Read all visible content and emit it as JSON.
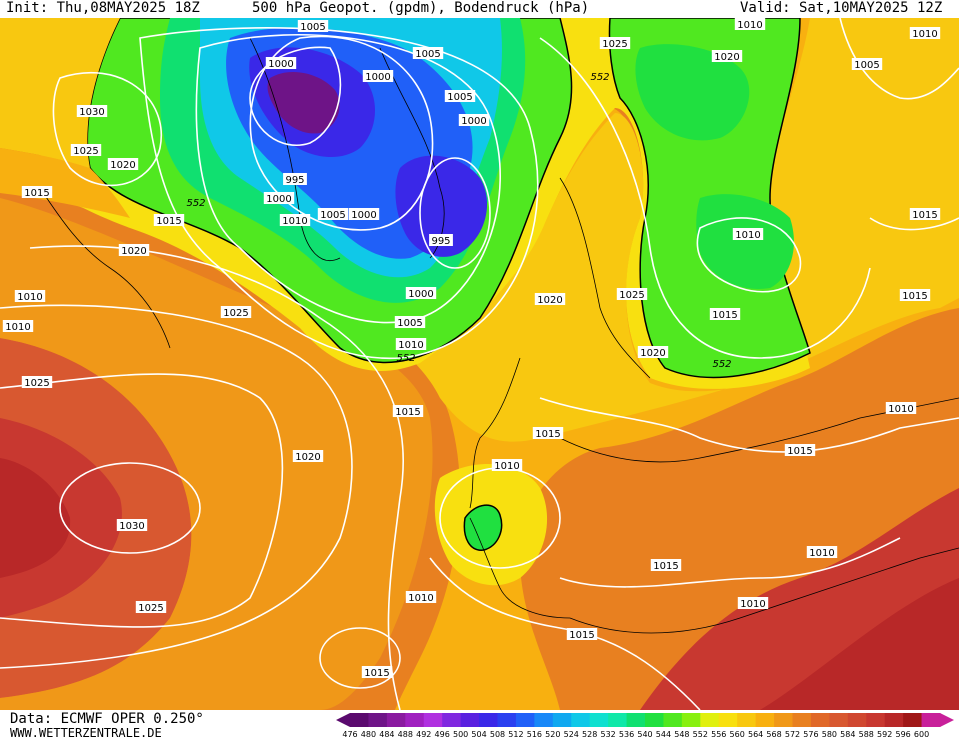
{
  "header": {
    "init": "Init: Thu,08MAY2025 18Z",
    "title": "500 hPa Geopot. (gpdm), Bodendruck (hPa)",
    "valid": "Valid: Sat,10MAY2025 12Z"
  },
  "footer": {
    "data_source": "Data: ECMWF OPER 0.250°",
    "website": "WWW.WETTERZENTRALE.DE"
  },
  "legend": {
    "values": [
      "476",
      "480",
      "484",
      "488",
      "492",
      "496",
      "500",
      "504",
      "508",
      "512",
      "516",
      "520",
      "524",
      "528",
      "532",
      "536",
      "540",
      "544",
      "548",
      "552",
      "556",
      "560",
      "564",
      "568",
      "572",
      "576",
      "580",
      "584",
      "588",
      "592",
      "596",
      "600"
    ],
    "colors": [
      "#5a0a6e",
      "#6e1487",
      "#8a1aa0",
      "#a020c0",
      "#b030e0",
      "#8028e0",
      "#5a20e0",
      "#3a28e8",
      "#2a40f0",
      "#2060f8",
      "#1888f8",
      "#10a8f0",
      "#10c8e8",
      "#10e0d0",
      "#10e8a8",
      "#10e070",
      "#20e040",
      "#50e820",
      "#88f010",
      "#e0f010",
      "#f8e010",
      "#f8c810",
      "#f8b010",
      "#f09818",
      "#e88020",
      "#e06828",
      "#d85830",
      "#d04830",
      "#c83830",
      "#b82828",
      "#a01818",
      "#c8209a"
    ]
  },
  "map": {
    "isobar_labels": [
      "1005",
      "1005",
      "1000",
      "1000",
      "1005",
      "1000",
      "1025",
      "1020",
      "1005",
      "1030",
      "1025",
      "1020",
      "1015",
      "1015",
      "995",
      "1000",
      "1010",
      "1005",
      "1000",
      "995",
      "1000",
      "1005",
      "1010",
      "1020",
      "1025",
      "1015",
      "1010",
      "1020",
      "1010",
      "1015",
      "1025",
      "1015",
      "1010",
      "1020",
      "1015",
      "1025",
      "1020",
      "1010",
      "1030",
      "1015",
      "1010",
      "1015",
      "1010",
      "1015",
      "1010",
      "1010",
      "1015",
      "1015",
      "1010",
      "1025",
      "1010"
    ],
    "contour_552_labels": [
      "552",
      "552",
      "552",
      "552"
    ],
    "colors": {
      "land_outline": "#000000",
      "isobar": "#ffffff",
      "contour_552": "#000000"
    }
  }
}
